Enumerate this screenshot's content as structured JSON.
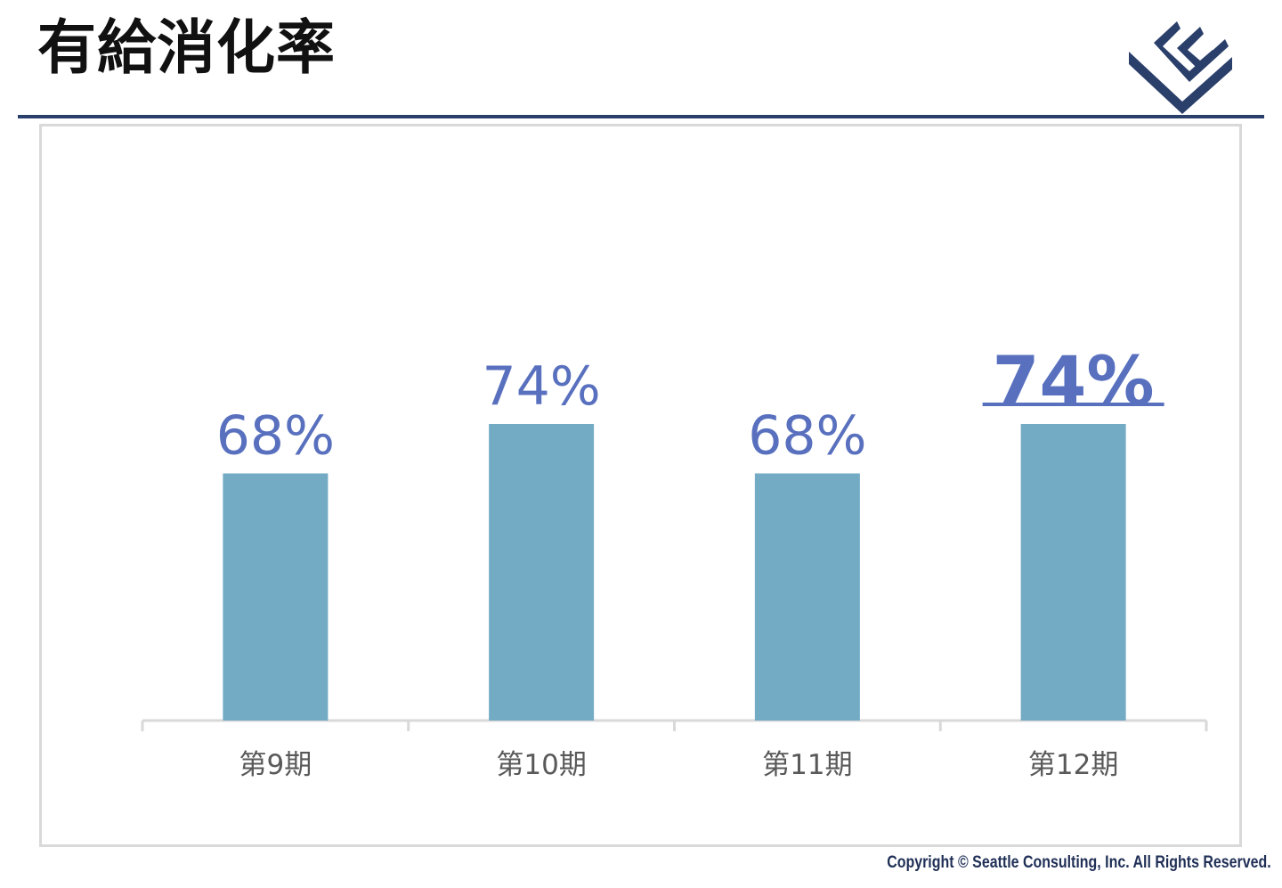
{
  "header": {
    "title": "有給消化率"
  },
  "logo": {
    "icon": "company-logo-icon",
    "color": "#2b3f6b"
  },
  "chart_data": {
    "type": "bar",
    "title": "",
    "xlabel": "",
    "ylabel": "",
    "categories": [
      "第9期",
      "第10期",
      "第11期",
      "第12期"
    ],
    "values": [
      68,
      74,
      68,
      74
    ],
    "data_labels": [
      "68%",
      "74%",
      "68%",
      "74%"
    ],
    "highlighted_index": 3,
    "grid": false,
    "legend": "none",
    "colors": {
      "bar": "#73abc5",
      "label": "#5870be",
      "axis": "#d9d9d9",
      "tick_label": "#595959"
    }
  },
  "footer": {
    "copyright": "Copyright © Seattle Consulting, Inc. All Rights Reserved."
  }
}
